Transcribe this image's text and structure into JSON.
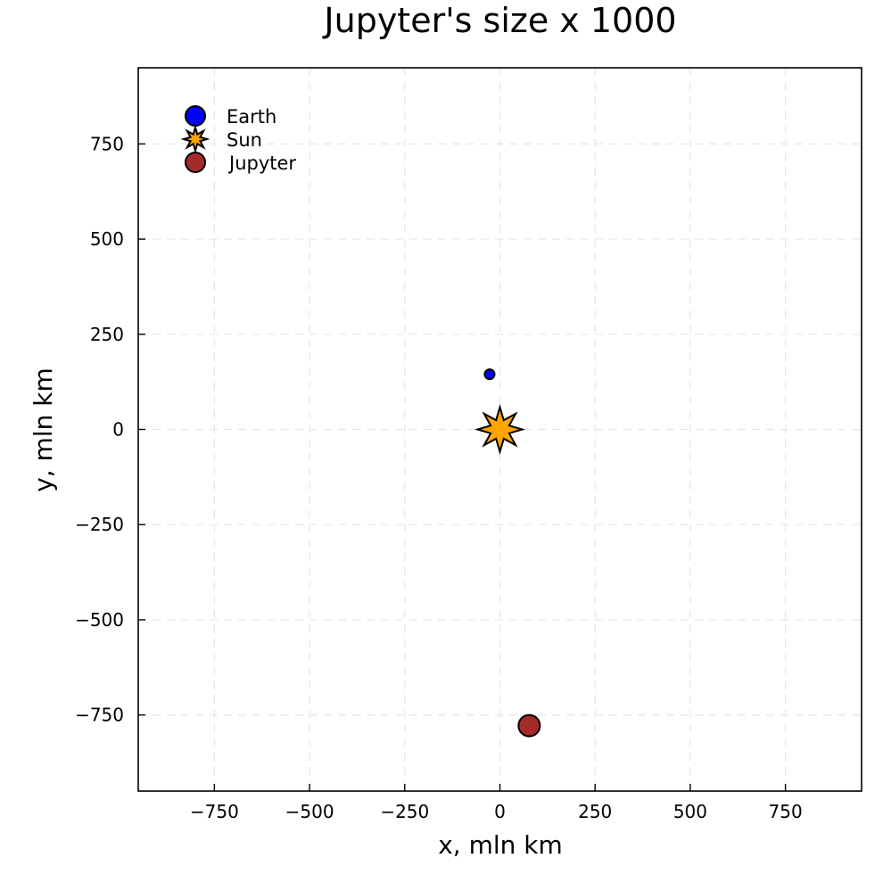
{
  "chart_data": {
    "type": "scatter",
    "title": "Jupyter's size x 1000",
    "xlabel": "x, mln km",
    "ylabel": "y, mln km",
    "xlim": [
      -950,
      950
    ],
    "ylim": [
      -950,
      950
    ],
    "xticks": [
      -750,
      -500,
      -250,
      0,
      250,
      500,
      750
    ],
    "yticks": [
      -750,
      -500,
      -250,
      0,
      250,
      500,
      750
    ],
    "xtick_labels": [
      "−750",
      "−500",
      "−250",
      "0",
      "250",
      "500",
      "750"
    ],
    "ytick_labels": [
      "−750",
      "−500",
      "−250",
      "0",
      "250",
      "500",
      "750"
    ],
    "grid": true,
    "legend_position": "top-left",
    "series": [
      {
        "name": "Earth",
        "x": [
          -27
        ],
        "y": [
          145
        ],
        "marker": "circle",
        "color": "#0000ff"
      },
      {
        "name": "Sun",
        "x": [
          0
        ],
        "y": [
          0
        ],
        "marker": "star8",
        "color": "#ffa500"
      },
      {
        "name": "Jupyter",
        "x": [
          77
        ],
        "y": [
          -778
        ],
        "marker": "circle",
        "color": "#a52a2a"
      }
    ]
  }
}
